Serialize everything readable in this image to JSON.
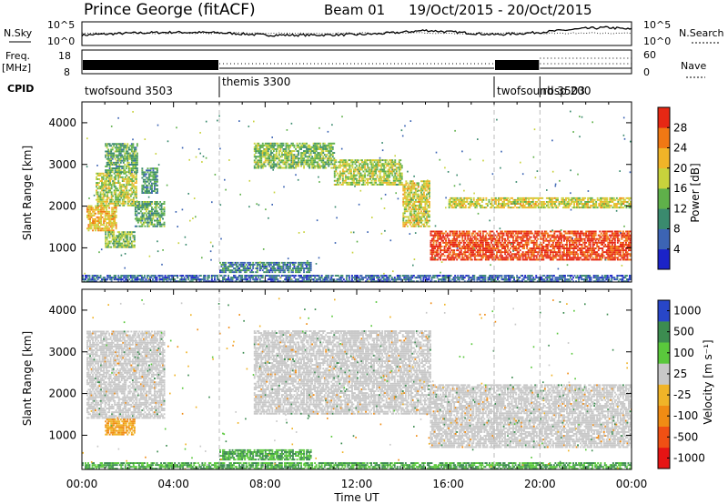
{
  "header": {
    "radar": "Prince George (fitACF)",
    "beam": "Beam 01",
    "date_range": "19/Oct/2015 - 20/Oct/2015"
  },
  "panels": {
    "nsky": {
      "label": "N.Sky",
      "left_ticks": [
        "10^5",
        "10^0"
      ],
      "right_ticks": [
        "10^5",
        "10^0"
      ],
      "right_label": "N.Search",
      "ylim": [
        0,
        5
      ],
      "noise_profile": [
        [
          0,
          2.2
        ],
        [
          2,
          2.6
        ],
        [
          4,
          2.8
        ],
        [
          6,
          2.7
        ],
        [
          8,
          2.2
        ],
        [
          10,
          2.2
        ],
        [
          12,
          2.3
        ],
        [
          13,
          2.5
        ],
        [
          14,
          2.8
        ],
        [
          15,
          3.2
        ],
        [
          16,
          2.9
        ],
        [
          17,
          2.6
        ],
        [
          18,
          2.3
        ],
        [
          19,
          2.5
        ],
        [
          20,
          2.8
        ],
        [
          21,
          3.2
        ],
        [
          22,
          3.6
        ],
        [
          23,
          3.8
        ],
        [
          24,
          3.4
        ]
      ]
    },
    "freq": {
      "label_top": "Freq.",
      "label_unit": "[MHz]",
      "left_ticks": [
        "18",
        "8"
      ],
      "right_ticks": [
        "60",
        "0"
      ],
      "right_label": "Nave",
      "cpid_label": "CPID",
      "cpid_blocks": [
        {
          "name": "twofsound 3503",
          "start": 0,
          "end": 6
        },
        {
          "name": "themis 3300",
          "start": 6,
          "end": 18
        },
        {
          "name": "twofsound 3503",
          "start": 18,
          "end": 20
        },
        {
          "name": "rbsp 200",
          "start": 20,
          "end": 24
        }
      ]
    }
  },
  "chart_data": [
    {
      "type": "heatmap",
      "panel": "power",
      "ylabel": "Slant Range [km]",
      "xlabel": "Time UT",
      "xlim": [
        0,
        24
      ],
      "ylim": [
        180,
        4500
      ],
      "x_ticks": [
        "00:00",
        "04:00",
        "08:00",
        "12:00",
        "16:00",
        "20:00",
        "00:00"
      ],
      "y_ticks": [
        1000,
        2000,
        3000,
        4000
      ],
      "colorbar": {
        "label": "Power [dB]",
        "ticks": [
          4,
          8,
          12,
          16,
          20,
          24,
          28
        ],
        "range": [
          0,
          30
        ],
        "colors": [
          "#1b23c8",
          "#3c64b4",
          "#3a8a6e",
          "#5fb04a",
          "#c8d23c",
          "#f0b428",
          "#f07814",
          "#e62814"
        ]
      },
      "echo_regions": [
        {
          "t0": 0.2,
          "t1": 1.5,
          "r0": 1400,
          "r1": 2000,
          "value": 20
        },
        {
          "t0": 0.6,
          "t1": 2.4,
          "r0": 2000,
          "r1": 2800,
          "value": 16
        },
        {
          "t0": 1.0,
          "t1": 2.4,
          "r0": 2800,
          "r1": 3500,
          "value": 12
        },
        {
          "t0": 1.0,
          "t1": 2.3,
          "r0": 1000,
          "r1": 1400,
          "value": 14
        },
        {
          "t0": 2.3,
          "t1": 3.6,
          "r0": 1500,
          "r1": 2100,
          "value": 12
        },
        {
          "t0": 2.6,
          "t1": 3.3,
          "r0": 2300,
          "r1": 2900,
          "value": 10
        },
        {
          "t0": 7.5,
          "t1": 11.0,
          "r0": 2900,
          "r1": 3500,
          "value": 14
        },
        {
          "t0": 11.0,
          "t1": 14.0,
          "r0": 2500,
          "r1": 3100,
          "value": 16
        },
        {
          "t0": 14.0,
          "t1": 15.2,
          "r0": 1500,
          "r1": 2600,
          "value": 18
        },
        {
          "t0": 15.2,
          "t1": 24.0,
          "r0": 700,
          "r1": 1400,
          "value": 28
        },
        {
          "t0": 16.0,
          "t1": 24.0,
          "r0": 1950,
          "r1": 2200,
          "value": 18
        },
        {
          "t0": 6.0,
          "t1": 10.0,
          "r0": 400,
          "r1": 650,
          "value": 8
        },
        {
          "t0": 0.0,
          "t1": 24.0,
          "r0": 180,
          "r1": 320,
          "value": 6
        }
      ]
    },
    {
      "type": "heatmap",
      "panel": "velocity",
      "ylabel": "Slant Range [km]",
      "xlabel": "Time UT",
      "xlim": [
        0,
        24
      ],
      "ylim": [
        180,
        4500
      ],
      "x_ticks": [
        "00:00",
        "04:00",
        "08:00",
        "12:00",
        "16:00",
        "20:00",
        "00:00"
      ],
      "y_ticks": [
        1000,
        2000,
        3000,
        4000
      ],
      "colorbar": {
        "label": "Velocity [m s⁻¹]",
        "ticks": [
          "1000",
          "500",
          "100",
          "25",
          "-25",
          "-100",
          "-500",
          "-1000"
        ],
        "colors": [
          "#2846c8",
          "#3c8c50",
          "#5ac83c",
          "#c8c8c8",
          "#f0b428",
          "#f08c14",
          "#f05014",
          "#e61414"
        ]
      },
      "echo_regions": [
        {
          "t0": 0.2,
          "t1": 3.6,
          "r0": 1400,
          "r1": 3500,
          "value": 0
        },
        {
          "t0": 1.0,
          "t1": 2.3,
          "r0": 1000,
          "r1": 1400,
          "value": -100
        },
        {
          "t0": 7.5,
          "t1": 15.2,
          "r0": 1500,
          "r1": 3500,
          "value": 0
        },
        {
          "t0": 15.2,
          "t1": 24.0,
          "r0": 700,
          "r1": 2200,
          "value": 0
        },
        {
          "t0": 6.0,
          "t1": 10.0,
          "r0": 400,
          "r1": 650,
          "value": 100
        },
        {
          "t0": 0.0,
          "t1": 24.0,
          "r0": 180,
          "r1": 320,
          "value": 100
        }
      ]
    }
  ]
}
